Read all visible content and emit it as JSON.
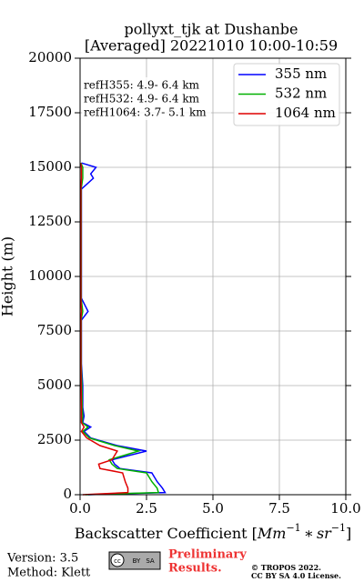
{
  "chart_data": {
    "type": "line",
    "title": [
      "pollyxt_tjk at Dushanbe",
      "[Averaged] 20221010 10:00-10:59"
    ],
    "xlabel_parts": [
      "Backscatter Coefficient [",
      "Mm",
      "−1",
      " ∗ sr",
      "−1",
      "]"
    ],
    "ylabel": "Height (m)",
    "annotations": [
      "refH355:  4.9- 6.4 km",
      "refH532:  4.9- 6.4 km",
      "refH1064:  3.7- 5.1 km"
    ],
    "y": [
      0,
      100,
      300,
      600,
      1000,
      1200,
      1400,
      1600,
      2000,
      2250,
      2600,
      2900,
      3100,
      3300,
      3600,
      4000,
      5000,
      6000,
      7000,
      8000,
      8400,
      9000,
      10000,
      11000,
      12000,
      13000,
      14000,
      14500,
      14700,
      15000,
      15200
    ],
    "series": [
      {
        "name": "355 nm",
        "color": "#0000ff",
        "values": [
          0.3,
          3.2,
          3.1,
          2.9,
          2.7,
          1.5,
          1.3,
          1.2,
          2.5,
          1.4,
          0.4,
          0.15,
          0.4,
          0.1,
          0.15,
          0.1,
          0.1,
          0.05,
          0.05,
          0.05,
          0.3,
          0.05,
          0.05,
          0.05,
          0.05,
          0.05,
          0.05,
          0.5,
          0.4,
          0.6,
          0.05
        ]
      },
      {
        "name": "532 nm",
        "color": "#00b000",
        "values": [
          0.2,
          2.95,
          2.9,
          2.7,
          2.5,
          1.4,
          1.2,
          1.1,
          2.2,
          1.3,
          0.35,
          0.1,
          0.3,
          0.08,
          0.1,
          0.08,
          0.07,
          0.04,
          0.04,
          0.04,
          0.1,
          0.04,
          0.04,
          0.04,
          0.04,
          0.04,
          0.04,
          0.1,
          0.1,
          0.1,
          0.03
        ]
      },
      {
        "name": "1064 nm",
        "color": "#e00000",
        "values": [
          0.1,
          1.8,
          1.8,
          1.7,
          1.6,
          0.75,
          0.7,
          1.2,
          1.4,
          0.75,
          0.25,
          0.05,
          0.15,
          0.05,
          0.05,
          0.05,
          0.04,
          0.03,
          0.03,
          0.03,
          0.05,
          0.03,
          0.03,
          0.03,
          0.03,
          0.03,
          0.03,
          0.05,
          0.05,
          0.05,
          0.02
        ]
      }
    ],
    "xlim": [
      0,
      10
    ],
    "xticks": [
      {
        "value": 0,
        "label": "0.0"
      },
      2.5,
      {
        "value": 5,
        "label": "5.0"
      },
      7.5,
      {
        "value": 10,
        "label": "10.0"
      }
    ],
    "ylim": [
      0,
      20000
    ],
    "yticks": [
      0,
      2500,
      5000,
      7500,
      10000,
      12500,
      15000,
      17500,
      20000
    ],
    "grid": true,
    "legend": "upper right"
  },
  "footer": {
    "version": "Version: 3.5",
    "method": "Method: Klett",
    "badge": [
      "cc",
      "BY",
      "SA"
    ],
    "notice": [
      "Preliminary",
      "Results."
    ],
    "copyright": [
      "© TROPOS 2022.",
      "CC BY SA 4.0 License."
    ]
  }
}
